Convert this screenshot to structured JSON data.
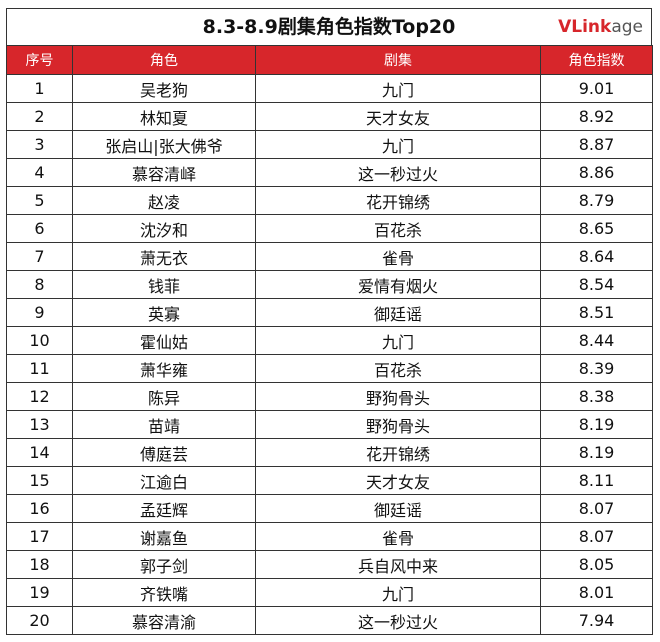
{
  "title": "8.3-8.9剧集角色指数Top20",
  "logo": {
    "main": "VLink",
    "suffix": "age"
  },
  "table": {
    "headers": [
      "序号",
      "角色",
      "剧集",
      "角色指数"
    ],
    "rows": [
      [
        1,
        "吴老狗",
        "九门",
        9.01
      ],
      [
        2,
        "林知夏",
        "天才女友",
        8.92
      ],
      [
        3,
        "张启山|张大佛爷",
        "九门",
        8.87
      ],
      [
        4,
        "慕容清峄",
        "这一秒过火",
        8.86
      ],
      [
        5,
        "赵凌",
        "花开锦绣",
        8.79
      ],
      [
        6,
        "沈汐和",
        "百花杀",
        8.65
      ],
      [
        7,
        "萧无衣",
        "雀骨",
        8.64
      ],
      [
        8,
        "钱菲",
        "爱情有烟火",
        8.54
      ],
      [
        9,
        "英寡",
        "御廷谣",
        8.51
      ],
      [
        10,
        "霍仙姑",
        "九门",
        8.44
      ],
      [
        11,
        "萧华雍",
        "百花杀",
        8.39
      ],
      [
        12,
        "陈异",
        "野狗骨头",
        8.38
      ],
      [
        13,
        "苗靖",
        "野狗骨头",
        8.19
      ],
      [
        14,
        "傅庭芸",
        "花开锦绣",
        8.19
      ],
      [
        15,
        "江逾白",
        "天才女友",
        8.11
      ],
      [
        16,
        "孟廷辉",
        "御廷谣",
        8.07
      ],
      [
        17,
        "谢嘉鱼",
        "雀骨",
        8.07
      ],
      [
        18,
        "郭子剑",
        "兵自风中来",
        8.05
      ],
      [
        19,
        "齐铁嘴",
        "九门",
        8.01
      ],
      [
        20,
        "慕容清渝",
        "这一秒过火",
        7.94
      ]
    ]
  }
}
